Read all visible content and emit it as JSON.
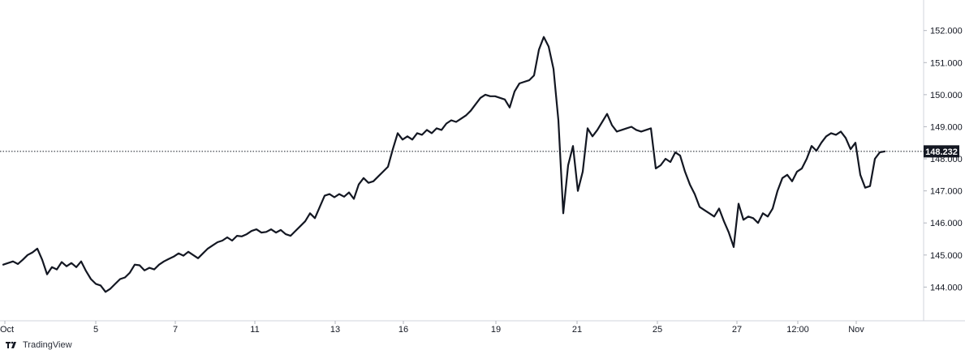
{
  "chart_data": {
    "type": "line",
    "price_scale": {
      "ticks": [
        "144.000",
        "145.000",
        "146.000",
        "147.000",
        "148.000",
        "149.000",
        "150.000",
        "151.000",
        "152.000"
      ],
      "range": [
        143.05,
        152.75
      ]
    },
    "time_scale": {
      "ticks": [
        "Oct",
        "5",
        "7",
        "11",
        "13",
        "16",
        "19",
        "21",
        "25",
        "27",
        "12:00",
        "Nov"
      ]
    },
    "last_price": "148.232",
    "last_price_value": 148.232,
    "series": [
      {
        "color": "#131722",
        "values": [
          144.7,
          144.75,
          144.8,
          144.72,
          144.85,
          145.0,
          145.08,
          145.2,
          144.85,
          144.4,
          144.62,
          144.55,
          144.78,
          144.65,
          144.75,
          144.62,
          144.8,
          144.5,
          144.25,
          144.1,
          144.05,
          143.85,
          143.95,
          144.1,
          144.25,
          144.3,
          144.45,
          144.7,
          144.68,
          144.52,
          144.6,
          144.55,
          144.7,
          144.8,
          144.88,
          144.95,
          145.05,
          144.98,
          145.1,
          145.0,
          144.9,
          145.05,
          145.2,
          145.3,
          145.4,
          145.45,
          145.55,
          145.45,
          145.6,
          145.58,
          145.65,
          145.75,
          145.8,
          145.7,
          145.72,
          145.8,
          145.7,
          145.78,
          145.65,
          145.6,
          145.75,
          145.9,
          146.05,
          146.3,
          146.15,
          146.5,
          146.85,
          146.9,
          146.8,
          146.9,
          146.82,
          146.95,
          146.75,
          147.2,
          147.4,
          147.25,
          147.3,
          147.45,
          147.6,
          147.75,
          148.3,
          148.8,
          148.6,
          148.7,
          148.6,
          148.8,
          148.75,
          148.9,
          148.8,
          148.95,
          148.9,
          149.1,
          149.2,
          149.15,
          149.25,
          149.35,
          149.5,
          149.7,
          149.9,
          150.0,
          149.95,
          149.95,
          149.9,
          149.85,
          149.6,
          150.1,
          150.35,
          150.4,
          150.45,
          150.6,
          151.4,
          151.8,
          151.5,
          150.8,
          149.2,
          146.3,
          147.8,
          148.4,
          147.0,
          147.6,
          148.95,
          148.7,
          148.9,
          149.15,
          149.4,
          149.05,
          148.85,
          148.9,
          148.95,
          149.0,
          148.9,
          148.85,
          148.9,
          148.95,
          147.7,
          147.8,
          148.0,
          147.9,
          148.2,
          148.1,
          147.6,
          147.2,
          146.9,
          146.5,
          146.4,
          146.3,
          146.2,
          146.45,
          146.05,
          145.7,
          145.25,
          146.6,
          146.1,
          146.2,
          146.15,
          146.0,
          146.3,
          146.2,
          146.45,
          147.0,
          147.4,
          147.5,
          147.3,
          147.6,
          147.7,
          148.0,
          148.4,
          148.25,
          148.5,
          148.7,
          148.8,
          148.75,
          148.85,
          148.65,
          148.3,
          148.5,
          147.5,
          147.1,
          147.15,
          148.0,
          148.2,
          148.232
        ]
      }
    ],
    "grid": false,
    "title": "",
    "xlabel": "",
    "ylabel": ""
  },
  "footer": {
    "brand": "TradingView"
  },
  "icons": {
    "logo": "tradingview-logo-icon"
  }
}
